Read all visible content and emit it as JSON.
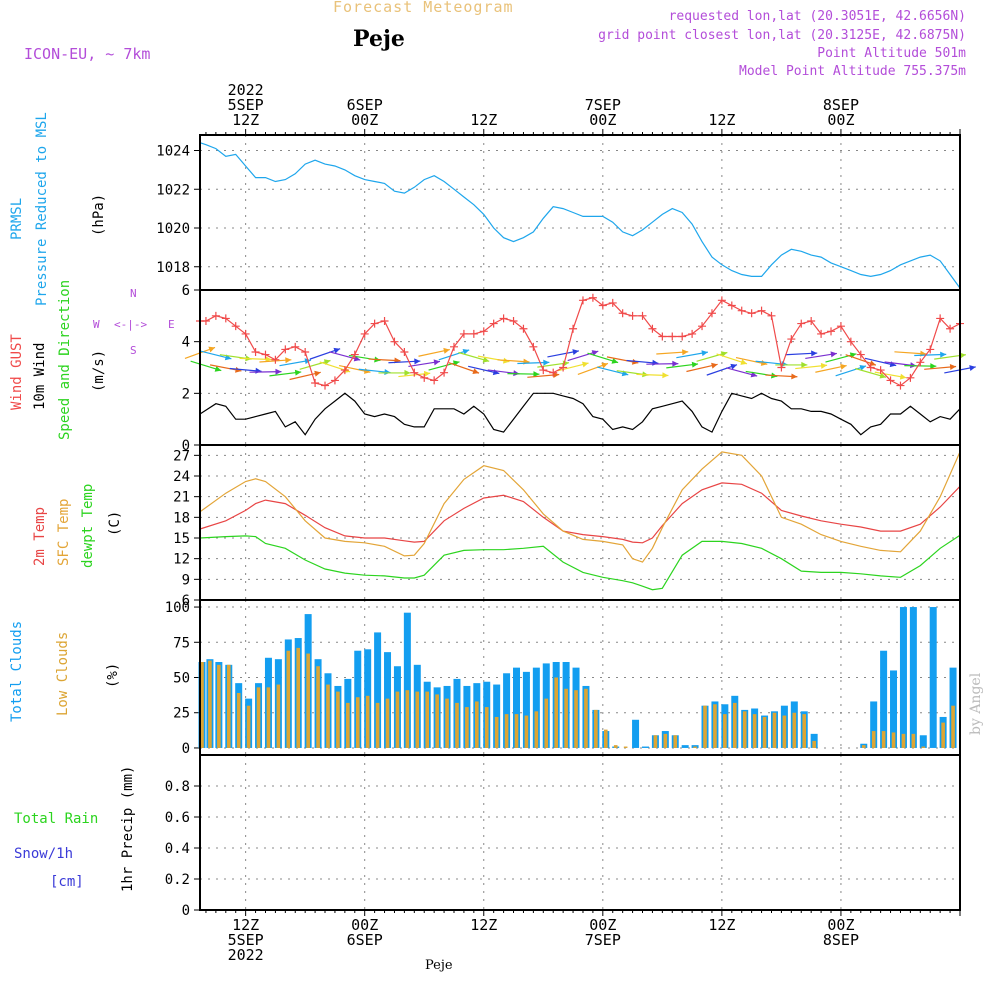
{
  "header": {
    "title": "Forecast Meteogram",
    "station": "Peje",
    "model": "ICON-EU, ~ 7km",
    "requested": "requested lon,lat (20.3051E, 42.6656N)",
    "gridpoint": "grid point closest lon,lat (20.3125E, 42.6875N)",
    "altitude": "Point Altitude 501m",
    "model_altitude": "Model Point Altitude 755.375m"
  },
  "footer": {
    "station": "Peje",
    "credit": "by Angel"
  },
  "colors": {
    "pressure": "#1ea6ec",
    "gust": "#f04a4a",
    "wind": "#000000",
    "temp2m": "#e84545",
    "sfc": "#e3a538",
    "dewpt": "#2cd41f",
    "total_clouds": "#139ef0",
    "low_clouds": "#dca534",
    "rain": "#2cd41f",
    "snow": "#3a3ad8",
    "compass": "#b34dd9"
  },
  "x_axis": {
    "top": [
      {
        "t": 12,
        "lines": [
          "2022",
          "5SEP",
          "12Z"
        ]
      },
      {
        "t": 24,
        "lines": [
          "6SEP",
          "00Z"
        ]
      },
      {
        "t": 36,
        "lines": [
          "12Z"
        ]
      },
      {
        "t": 48,
        "lines": [
          "7SEP",
          "00Z"
        ]
      },
      {
        "t": 60,
        "lines": [
          "12Z"
        ]
      },
      {
        "t": 72,
        "lines": [
          "8SEP",
          "00Z"
        ]
      }
    ],
    "bottom": [
      {
        "t": 12,
        "lines": [
          "12Z",
          "5SEP",
          "2022"
        ]
      },
      {
        "t": 24,
        "lines": [
          "00Z",
          "6SEP"
        ]
      },
      {
        "t": 36,
        "lines": [
          "12Z"
        ]
      },
      {
        "t": 48,
        "lines": [
          "00Z",
          "7SEP"
        ]
      },
      {
        "t": 60,
        "lines": [
          "12Z"
        ]
      },
      {
        "t": 72,
        "lines": [
          "00Z",
          "8SEP"
        ]
      }
    ]
  },
  "panel_labels": {
    "pressure": [
      "PRMSL",
      "Pressure Reduced to MSL",
      "(hPa)"
    ],
    "wind": [
      "Wind GUST",
      "10m Wind",
      "Speed and Direction",
      "(m/s)"
    ],
    "compass": {
      "n": "N",
      "s": "S",
      "w": "W",
      "e": "E",
      "arrows": "<-|->"
    },
    "temp": [
      "2m Temp",
      "SFC Temp",
      "dewpt Temp",
      "(C)"
    ],
    "clouds": [
      "Total Clouds",
      "Low Clouds",
      "(%)"
    ],
    "precip": {
      "rain": "Total Rain",
      "snow": "Snow/1h",
      "snow_unit": "[cm]",
      "axis": "1hr Precip (mm)"
    }
  },
  "chart_data": [
    {
      "type": "line",
      "name": "pressure",
      "ylabel": "(hPa)",
      "ylim": [
        1016.8,
        1024.8
      ],
      "ticks": [
        1018,
        1020,
        1022,
        1024
      ],
      "grid": true,
      "x_hours_from_5SEP00Z": [
        7.4,
        8,
        9,
        10,
        11,
        12,
        13,
        14,
        15,
        16,
        17,
        18,
        19,
        20,
        21,
        22,
        23,
        24,
        25,
        26,
        27,
        28,
        29,
        30,
        31,
        32,
        33,
        34,
        35,
        36,
        37,
        38,
        39,
        40,
        41,
        42,
        43,
        44,
        45,
        46,
        47,
        48,
        49,
        50,
        51,
        52,
        53,
        54,
        55,
        56,
        57,
        58,
        59,
        60,
        61,
        62,
        63,
        64,
        65,
        66,
        67,
        68,
        69,
        70,
        71,
        72,
        73,
        74,
        75,
        76,
        77,
        78,
        79,
        80,
        81,
        82,
        83,
        84
      ],
      "series": [
        {
          "name": "PRMSL",
          "values": [
            1024.4,
            1024.3,
            1024.1,
            1023.7,
            1023.8,
            1023.2,
            1022.6,
            1022.6,
            1022.4,
            1022.5,
            1022.8,
            1023.3,
            1023.5,
            1023.3,
            1023.2,
            1023.0,
            1022.7,
            1022.5,
            1022.4,
            1022.3,
            1021.9,
            1021.8,
            1022.1,
            1022.5,
            1022.7,
            1022.4,
            1022.0,
            1021.6,
            1021.2,
            1020.7,
            1020.0,
            1019.5,
            1019.3,
            1019.5,
            1019.8,
            1020.5,
            1021.1,
            1021.0,
            1020.8,
            1020.6,
            1020.6,
            1020.6,
            1020.3,
            1019.8,
            1019.6,
            1019.9,
            1020.3,
            1020.7,
            1021.0,
            1020.8,
            1020.2,
            1019.3,
            1018.5,
            1018.1,
            1017.8,
            1017.6,
            1017.5,
            1017.5,
            1018.1,
            1018.6,
            1018.9,
            1018.8,
            1018.6,
            1018.5,
            1018.2,
            1018.0,
            1017.8,
            1017.6,
            1017.5,
            1017.6,
            1017.8,
            1018.1,
            1018.3,
            1018.5,
            1018.6,
            1018.3,
            1017.6,
            1016.9
          ]
        }
      ]
    },
    {
      "type": "line",
      "name": "wind",
      "ylabel": "(m/s)",
      "ylim": [
        0,
        6
      ],
      "ticks": [
        0,
        2,
        4,
        6
      ],
      "grid": true,
      "x_hours_from_5SEP00Z": [
        7.4,
        8,
        9,
        10,
        11,
        12,
        13,
        14,
        15,
        16,
        17,
        18,
        19,
        20,
        21,
        22,
        23,
        24,
        25,
        26,
        27,
        28,
        29,
        30,
        31,
        32,
        33,
        34,
        35,
        36,
        37,
        38,
        39,
        40,
        41,
        42,
        43,
        44,
        45,
        46,
        47,
        48,
        49,
        50,
        51,
        52,
        53,
        54,
        55,
        56,
        57,
        58,
        59,
        60,
        61,
        62,
        63,
        64,
        65,
        66,
        67,
        68,
        69,
        70,
        71,
        72,
        73,
        74,
        75,
        76,
        77,
        78,
        79,
        80,
        81,
        82,
        83,
        84
      ],
      "series": [
        {
          "name": "Wind GUST",
          "values": [
            4.8,
            4.8,
            5.0,
            4.9,
            4.6,
            4.3,
            3.6,
            3.5,
            3.3,
            3.7,
            3.8,
            3.6,
            2.4,
            2.3,
            2.5,
            2.9,
            3.5,
            4.3,
            4.7,
            4.8,
            4.0,
            3.6,
            2.8,
            2.6,
            2.5,
            2.8,
            3.8,
            4.3,
            4.3,
            4.4,
            4.7,
            4.9,
            4.8,
            4.5,
            3.8,
            2.9,
            2.8,
            3.0,
            4.5,
            5.6,
            5.7,
            5.4,
            5.5,
            5.1,
            5.0,
            5.0,
            4.5,
            4.2,
            4.2,
            4.2,
            4.3,
            4.6,
            5.1,
            5.6,
            5.4,
            5.2,
            5.1,
            5.2,
            5.0,
            3.0,
            4.1,
            4.7,
            4.8,
            4.3,
            4.4,
            4.6,
            4.0,
            3.5,
            3.0,
            2.9,
            2.5,
            2.3,
            2.6,
            3.2,
            3.7,
            4.9,
            4.5,
            4.7
          ]
        },
        {
          "name": "10m Wind",
          "values": [
            1.2,
            1.35,
            1.6,
            1.5,
            1.0,
            1.0,
            1.1,
            1.2,
            1.3,
            0.7,
            0.9,
            0.4,
            1.0,
            1.4,
            1.7,
            2.0,
            1.7,
            1.2,
            1.1,
            1.2,
            1.1,
            0.8,
            0.7,
            0.7,
            1.4,
            1.4,
            1.4,
            1.2,
            1.5,
            1.2,
            0.6,
            0.5,
            1.0,
            1.5,
            2.0,
            2.0,
            2.0,
            1.9,
            1.8,
            1.6,
            1.1,
            1.0,
            0.6,
            0.7,
            0.6,
            0.9,
            1.4,
            1.5,
            1.6,
            1.7,
            1.3,
            0.7,
            0.5,
            1.3,
            2.0,
            1.9,
            1.8,
            2.0,
            1.8,
            1.7,
            1.4,
            1.4,
            1.3,
            1.3,
            1.2,
            1.0,
            0.8,
            0.4,
            0.7,
            0.8,
            1.2,
            1.2,
            1.5,
            1.2,
            0.9,
            1.1,
            1.0,
            1.4
          ]
        }
      ],
      "wind_arrows_y": 3.1
    },
    {
      "type": "line",
      "name": "temperature",
      "ylabel": "(C)",
      "ylim": [
        6,
        28.5
      ],
      "ticks": [
        6,
        9,
        12,
        15,
        18,
        21,
        24,
        27
      ],
      "grid": true,
      "x_hours_from_5SEP00Z": [
        7.4,
        10,
        12,
        13,
        14,
        16,
        18,
        20,
        22,
        24,
        26,
        28,
        29,
        30,
        32,
        34,
        36,
        38,
        40,
        42,
        44,
        46,
        48,
        50,
        51,
        52,
        53,
        54,
        56,
        58,
        60,
        62,
        64,
        66,
        68,
        70,
        72,
        74,
        76,
        78,
        80,
        82,
        84
      ],
      "series": [
        {
          "name": "2m Temp",
          "values": [
            16.3,
            17.5,
            19.0,
            20.0,
            20.5,
            20.0,
            18.3,
            16.5,
            15.3,
            15.0,
            15.0,
            14.6,
            14.4,
            14.5,
            17.5,
            19.3,
            20.8,
            21.2,
            20.3,
            18.0,
            16.0,
            15.5,
            15.2,
            14.8,
            14.4,
            14.3,
            15.0,
            16.8,
            20.0,
            22.0,
            23.0,
            22.8,
            21.5,
            19.0,
            18.2,
            17.5,
            17.0,
            16.6,
            16.0,
            16.0,
            17.0,
            19.5,
            22.5
          ]
        },
        {
          "name": "SFC Temp",
          "values": [
            18.8,
            21.5,
            23.2,
            23.6,
            23.2,
            21.0,
            17.5,
            15.0,
            14.5,
            14.3,
            13.8,
            12.4,
            12.5,
            14.2,
            20.0,
            23.5,
            25.5,
            24.8,
            22.0,
            18.5,
            16.0,
            14.8,
            14.5,
            14.0,
            12.0,
            11.5,
            13.5,
            16.5,
            22.0,
            25.0,
            27.5,
            27.0,
            24.0,
            18.0,
            17.0,
            15.5,
            14.5,
            13.8,
            13.2,
            13.0,
            16.0,
            21.0,
            27.5
          ]
        },
        {
          "name": "dewpt Temp",
          "values": [
            15.0,
            15.2,
            15.3,
            15.2,
            14.2,
            13.5,
            11.8,
            10.5,
            9.9,
            9.6,
            9.5,
            9.2,
            9.2,
            9.6,
            12.5,
            13.2,
            13.3,
            13.3,
            13.5,
            13.8,
            11.5,
            10.0,
            9.3,
            8.8,
            8.5,
            8.0,
            7.5,
            7.7,
            12.5,
            14.5,
            14.5,
            14.2,
            13.5,
            12.0,
            10.2,
            10.0,
            10.0,
            9.8,
            9.5,
            9.3,
            11.0,
            13.5,
            15.4
          ]
        }
      ]
    },
    {
      "type": "bar",
      "name": "clouds",
      "ylabel": "(%)",
      "ylim": [
        -5,
        105
      ],
      "ticks": [
        0,
        25,
        50,
        75,
        100
      ],
      "grid": true,
      "x_hours_from_5SEP00Z": [
        7.6,
        8.4,
        9.3,
        10.3,
        11.3,
        12.3,
        13.3,
        14.3,
        15.3,
        16.3,
        17.3,
        18.3,
        19.3,
        20.3,
        21.3,
        22.3,
        23.3,
        24.3,
        25.3,
        26.3,
        27.3,
        28.3,
        29.3,
        30.3,
        31.3,
        32.3,
        33.3,
        34.3,
        35.3,
        36.3,
        37.3,
        38.3,
        39.3,
        40.3,
        41.3,
        42.3,
        43.3,
        44.3,
        45.3,
        46.3,
        47.3,
        48.3,
        49.3,
        50.3,
        51.3,
        52.3,
        53.3,
        54.3,
        55.3,
        56.3,
        57.3,
        58.3,
        59.3,
        60.3,
        61.3,
        62.3,
        63.3,
        64.3,
        65.3,
        66.3,
        67.3,
        68.3,
        69.3,
        70.3,
        71.3,
        72.3,
        73.3,
        74.3,
        75.3,
        76.3,
        77.3,
        78.3,
        79.3,
        80.3,
        81.3,
        82.3,
        83.3,
        84.0
      ],
      "series": [
        {
          "name": "Total Clouds",
          "values": [
            61,
            63,
            61,
            59,
            46,
            35,
            46,
            64,
            63,
            77,
            78,
            95,
            63,
            53,
            44,
            49,
            69,
            70,
            82,
            68,
            58,
            96,
            59,
            47,
            43,
            44,
            49,
            44,
            46,
            47,
            45,
            53,
            57,
            54,
            57,
            60,
            61,
            61,
            57,
            44,
            27,
            12,
            1,
            0,
            20,
            1,
            9,
            12,
            9,
            2,
            2,
            30,
            33,
            31,
            37,
            27,
            28,
            23,
            26,
            30,
            33,
            26,
            10,
            0,
            0,
            0,
            0,
            3,
            33,
            69,
            55,
            100,
            100,
            9,
            100,
            22,
            57,
            0
          ]
        },
        {
          "name": "Low Clouds",
          "values": [
            61,
            62,
            59,
            59,
            39,
            30,
            43,
            43,
            45,
            69,
            71,
            67,
            58,
            45,
            40,
            32,
            36,
            37,
            32,
            35,
            40,
            41,
            40,
            40,
            38,
            35,
            32,
            29,
            33,
            29,
            22,
            24,
            24,
            23,
            26,
            35,
            50,
            42,
            41,
            42,
            27,
            13,
            2,
            1,
            0,
            0,
            9,
            10,
            9,
            0,
            1,
            30,
            31,
            24,
            32,
            26,
            24,
            22,
            25,
            23,
            25,
            24,
            5,
            0,
            0,
            0,
            0,
            2,
            12,
            12,
            11,
            10,
            10,
            1,
            0,
            18,
            30,
            0
          ]
        }
      ]
    },
    {
      "type": "bar",
      "name": "precipitation",
      "ylabel": "1hr Precip (mm)",
      "ylim": [
        0,
        1.0
      ],
      "ticks": [
        0,
        0.2,
        0.4,
        0.6,
        0.8
      ],
      "grid": true,
      "series": [
        {
          "name": "Total Rain",
          "values": []
        },
        {
          "name": "Snow/1h",
          "values": []
        }
      ]
    }
  ]
}
